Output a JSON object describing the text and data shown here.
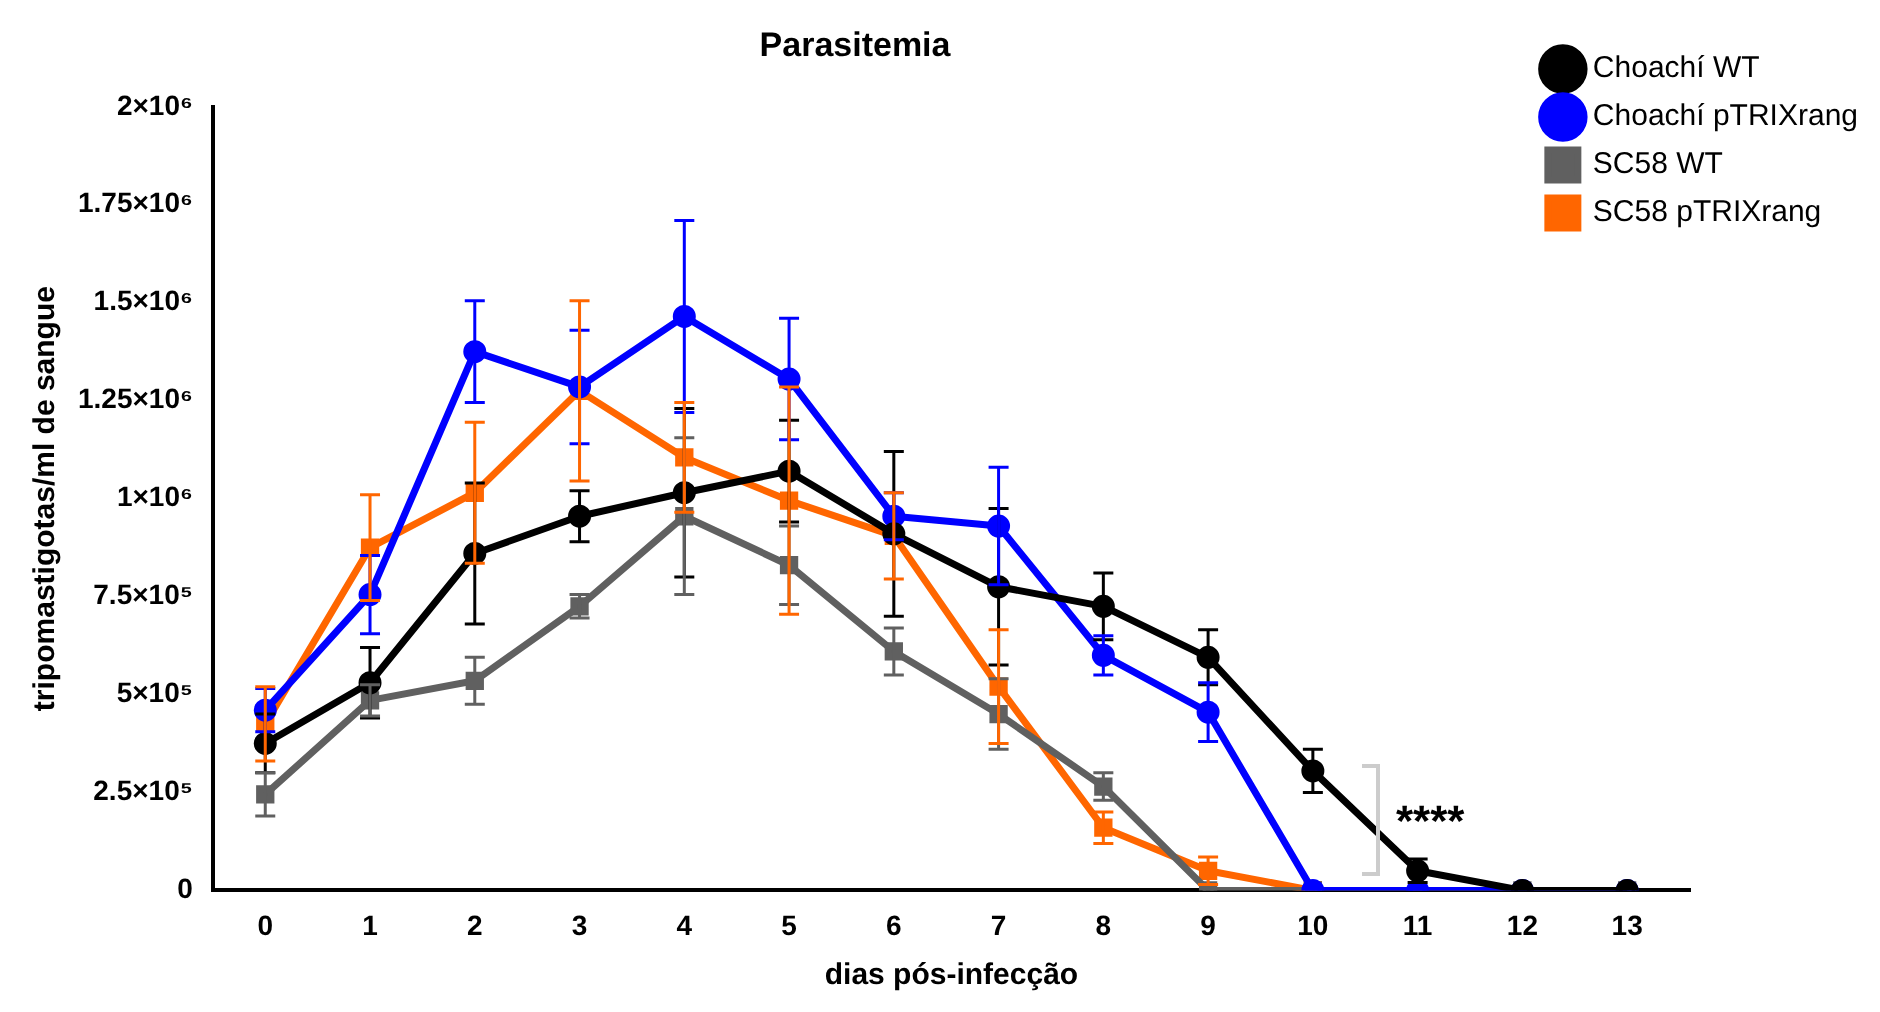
{
  "chart_data": {
    "type": "line",
    "title": "Parasitemia",
    "xlabel": "dias pós-infecção",
    "ylabel": "tripomastigotas/ml de sangue",
    "x": [
      0,
      1,
      2,
      3,
      4,
      5,
      6,
      7,
      8,
      9,
      10,
      11,
      12,
      13
    ],
    "xlim": [
      -0.5,
      13.6
    ],
    "xticks": [
      0,
      1,
      2,
      3,
      4,
      5,
      6,
      7,
      8,
      9,
      10,
      11,
      12,
      13
    ],
    "ylim": [
      0,
      2000000
    ],
    "yticks": [
      0,
      {
        "value": 250000,
        "label": "2.5×10⁵"
      },
      {
        "value": 500000,
        "label": "5×10⁵"
      },
      {
        "value": 750000,
        "label": "7.5×10⁵"
      },
      {
        "value": 1000000,
        "label": "1×10⁶"
      },
      {
        "value": 1250000,
        "label": "1.25×10⁶"
      },
      {
        "value": 1500000,
        "label": "1.5×10⁶"
      },
      {
        "value": 1750000,
        "label": "1.75×10⁶"
      },
      {
        "value": 2000000,
        "label": "2×10⁶"
      }
    ],
    "grid": false,
    "legend": "top right",
    "line_style": "solid",
    "series": [
      {
        "name": "Choachí WT",
        "color": "#000000",
        "marker": "circle",
        "values": [
          375000,
          530000,
          860000,
          955000,
          1015000,
          1070000,
          910000,
          775000,
          725000,
          595000,
          305000,
          50000,
          0,
          0
        ],
        "errors": [
          75000,
          90000,
          180000,
          65000,
          215000,
          130000,
          210000,
          200000,
          85000,
          70000,
          55000,
          30000,
          null,
          null
        ]
      },
      {
        "name": "Choachí pTRIXrang",
        "color": "#0000ff",
        "marker": "circle",
        "values": [
          460000,
          755000,
          1375000,
          1285000,
          1465000,
          1305000,
          955000,
          930000,
          600000,
          455000,
          0,
          0,
          0,
          0
        ],
        "errors": [
          55000,
          100000,
          130000,
          145000,
          245000,
          155000,
          60000,
          150000,
          50000,
          75000,
          null,
          null,
          null,
          null
        ]
      },
      {
        "name": "SC58 WT",
        "color": "#606060",
        "marker": "square",
        "values": [
          245000,
          485000,
          535000,
          725000,
          955000,
          830000,
          610000,
          450000,
          265000,
          0,
          0,
          0,
          0,
          0
        ],
        "errors": [
          55000,
          40000,
          60000,
          30000,
          200000,
          100000,
          60000,
          90000,
          35000,
          null,
          null,
          null,
          null,
          null
        ]
      },
      {
        "name": "SC58 pTRIXrang",
        "color": "#ff6600",
        "marker": "square",
        "values": [
          425000,
          875000,
          1015000,
          1275000,
          1105000,
          995000,
          905000,
          520000,
          160000,
          50000,
          0,
          null,
          null,
          null
        ],
        "errors": [
          95000,
          135000,
          180000,
          230000,
          140000,
          290000,
          110000,
          145000,
          40000,
          35000,
          null,
          null,
          null,
          null
        ]
      }
    ],
    "annotations": [
      "****"
    ]
  }
}
